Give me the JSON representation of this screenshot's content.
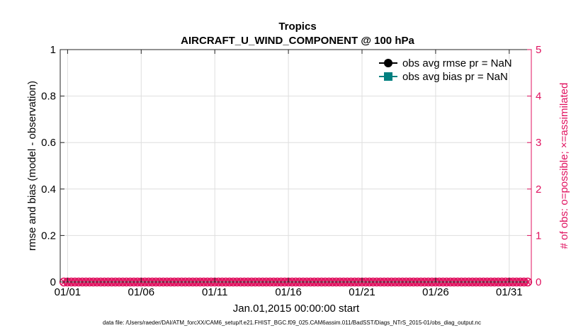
{
  "chart_data": {
    "type": "line",
    "title": "Tropics",
    "subtitle": "AIRCRAFT_U_WIND_COMPONENT @ 100 hPa",
    "xlabel": "Jan.01,2015 00:00:00 start",
    "ylabel_left": "rmse and bias (model - observation)",
    "ylabel_right": "# of obs: o=possible; ×=assimilated",
    "x_ticks": [
      "01/01",
      "01/06",
      "01/11",
      "01/16",
      "01/21",
      "01/26",
      "01/31"
    ],
    "x_tick_days": [
      0,
      5,
      10,
      15,
      20,
      25,
      30
    ],
    "xlim_days": [
      -0.5,
      31.5
    ],
    "y_left_ticks": [
      "0",
      "0.2",
      "0.4",
      "0.6",
      "0.8",
      "1"
    ],
    "ylim_left": [
      0,
      1
    ],
    "y_right_ticks": [
      "0",
      "1",
      "2",
      "3",
      "4",
      "5"
    ],
    "ylim_right": [
      0,
      5
    ],
    "grid": true,
    "legend_position": "top-right",
    "series": [
      {
        "name": "obs avg rmse pr = NaN",
        "color": "#000000",
        "marker": "circle",
        "values": []
      },
      {
        "name": "obs avg bias pr = NaN",
        "color": "#008080",
        "marker": "square",
        "values": []
      },
      {
        "color": "#e0115f",
        "marker": "circle-open",
        "axis": "right",
        "x_start_day": -0.25,
        "x_step_days": 0.25,
        "count": 127,
        "value": 0
      },
      {
        "color": "#e0115f",
        "marker": "x",
        "axis": "right",
        "x_start_day": -0.25,
        "x_step_days": 0.25,
        "count": 127,
        "value": 0
      }
    ],
    "axis_color_right": "#e0115f"
  },
  "footer": "data file: /Users/raeder/DAI/ATM_forcXX/CAM6_setup/f.e21.FHIST_BGC.f09_025.CAM6assim.011/BadSST/Diags_NTrS_2015-01/obs_diag_output.nc"
}
